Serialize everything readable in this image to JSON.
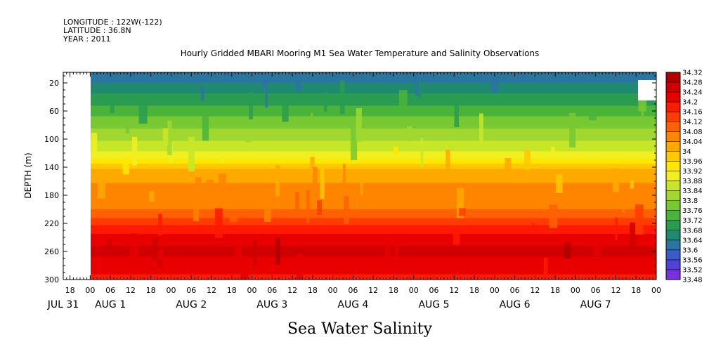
{
  "header": {
    "longitude": "LONGITUDE : 122W(-122)",
    "latitude": "LATITUDE : 36.8N",
    "year": "YEAR : 2011"
  },
  "chart_data": {
    "type": "heatmap",
    "title": "Hourly Gridded MBARI Mooring M1 Sea Water Temperature and Salinity Observations",
    "xlabel": "",
    "ylabel": "DEPTH (m)",
    "bottom_caption": "Sea Water Salinity",
    "x_start_hour": 16,
    "x_end_hour": 192,
    "x_data_start_hour": 24,
    "hour_tick_labels": [
      {
        "hour": 18,
        "label": "18"
      },
      {
        "hour": 24,
        "label": "00"
      },
      {
        "hour": 30,
        "label": "06"
      },
      {
        "hour": 36,
        "label": "12"
      },
      {
        "hour": 42,
        "label": "18"
      },
      {
        "hour": 48,
        "label": "00"
      },
      {
        "hour": 54,
        "label": "06"
      },
      {
        "hour": 60,
        "label": "12"
      },
      {
        "hour": 66,
        "label": "18"
      },
      {
        "hour": 72,
        "label": "00"
      },
      {
        "hour": 78,
        "label": "06"
      },
      {
        "hour": 84,
        "label": "12"
      },
      {
        "hour": 90,
        "label": "18"
      },
      {
        "hour": 96,
        "label": "00"
      },
      {
        "hour": 102,
        "label": "06"
      },
      {
        "hour": 108,
        "label": "12"
      },
      {
        "hour": 114,
        "label": "18"
      },
      {
        "hour": 120,
        "label": "00"
      },
      {
        "hour": 126,
        "label": "06"
      },
      {
        "hour": 132,
        "label": "12"
      },
      {
        "hour": 138,
        "label": "18"
      },
      {
        "hour": 144,
        "label": "00"
      },
      {
        "hour": 150,
        "label": "06"
      },
      {
        "hour": 156,
        "label": "12"
      },
      {
        "hour": 162,
        "label": "18"
      },
      {
        "hour": 168,
        "label": "00"
      },
      {
        "hour": 174,
        "label": "06"
      },
      {
        "hour": 180,
        "label": "12"
      },
      {
        "hour": 186,
        "label": "18"
      },
      {
        "hour": 192,
        "label": "00"
      },
      {
        "hour": 198,
        "label": "06"
      },
      {
        "hour": 204,
        "label": "12"
      }
    ],
    "date_labels": [
      {
        "hour": 16,
        "label": "JUL 31"
      },
      {
        "hour": 30,
        "label": "AUG  1"
      },
      {
        "hour": 54,
        "label": "AUG  2"
      },
      {
        "hour": 78,
        "label": "AUG  3"
      },
      {
        "hour": 102,
        "label": "AUG  4"
      },
      {
        "hour": 126,
        "label": "AUG  5"
      },
      {
        "hour": 150,
        "label": "AUG  6"
      },
      {
        "hour": 174,
        "label": "AUG  7"
      }
    ],
    "y_ticks": [
      20,
      60,
      100,
      140,
      180,
      220,
      260,
      300
    ],
    "ylim": [
      300,
      5
    ],
    "colorbar": {
      "min": 33.48,
      "max": 34.32,
      "step": 0.04,
      "labels": [
        "34.32",
        "34.28",
        "34.24",
        "34.2",
        "34.16",
        "34.12",
        "34.08",
        "34.04",
        "34",
        "33.96",
        "33.92",
        "33.88",
        "33.84",
        "33.8",
        "33.76",
        "33.72",
        "33.68",
        "33.64",
        "33.6",
        "33.56",
        "33.52",
        "33.48"
      ],
      "colors": [
        "#b00000",
        "#d00000",
        "#e80000",
        "#ff1a00",
        "#ff3c00",
        "#ff6000",
        "#ff8400",
        "#ffa800",
        "#ffc800",
        "#ffe800",
        "#f0f020",
        "#c8e628",
        "#a0d830",
        "#78c832",
        "#4ab43a",
        "#2a9c50",
        "#208a70",
        "#2a76a0",
        "#3a5cc8",
        "#5042d8",
        "#7a30e0",
        "#b840f0"
      ]
    },
    "depth_profile": [
      {
        "depth": 5,
        "value": 33.62
      },
      {
        "depth": 20,
        "value": 33.64
      },
      {
        "depth": 30,
        "value": 33.67
      },
      {
        "depth": 45,
        "value": 33.7
      },
      {
        "depth": 60,
        "value": 33.74
      },
      {
        "depth": 80,
        "value": 33.79
      },
      {
        "depth": 100,
        "value": 33.83
      },
      {
        "depth": 120,
        "value": 33.89
      },
      {
        "depth": 135,
        "value": 33.96
      },
      {
        "depth": 145,
        "value": 34.02
      },
      {
        "depth": 170,
        "value": 34.05
      },
      {
        "depth": 200,
        "value": 34.08
      },
      {
        "depth": 220,
        "value": 34.15
      },
      {
        "depth": 240,
        "value": 34.22
      },
      {
        "depth": 260,
        "value": 34.25
      },
      {
        "depth": 280,
        "value": 34.22
      },
      {
        "depth": 300,
        "value": 34.19
      }
    ]
  }
}
